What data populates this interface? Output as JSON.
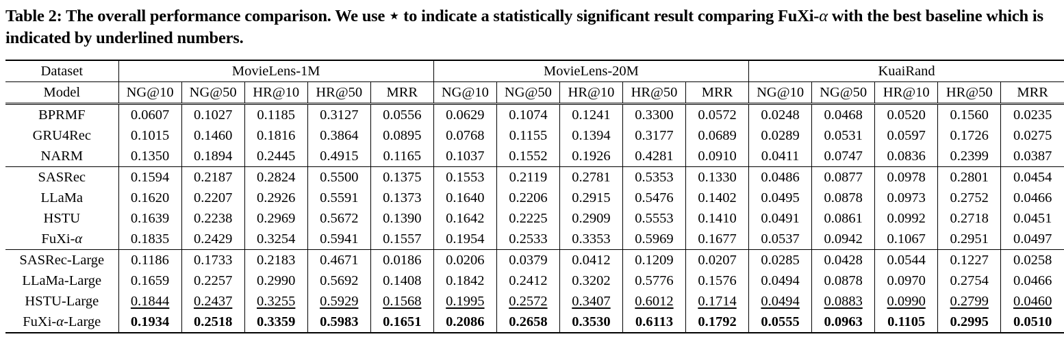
{
  "caption": {
    "part1": "Table 2: The overall performance comparison. We use ⋆ to indicate a statistically significant result comparing FuXi-",
    "alpha": "α",
    "part2": " with the best baseline which is indicated by underlined numbers."
  },
  "table": {
    "dataset_label": "Dataset",
    "model_label": "Model",
    "datasets": [
      "MovieLens-1M",
      "MovieLens-20M",
      "KuaiRand"
    ],
    "metrics": [
      "NG@10",
      "NG@50",
      "HR@10",
      "HR@50",
      "MRR",
      "NG@10",
      "NG@50",
      "HR@10",
      "HR@50",
      "MRR",
      "NG@10",
      "NG@50",
      "HR@10",
      "HR@50",
      "MRR"
    ],
    "rows": [
      {
        "model": "BPRMF",
        "values": [
          "0.0607",
          "0.1027",
          "0.1185",
          "0.3127",
          "0.0556",
          "0.0629",
          "0.1074",
          "0.1241",
          "0.3300",
          "0.0572",
          "0.0248",
          "0.0468",
          "0.0520",
          "0.1560",
          "0.0235"
        ]
      },
      {
        "model": "GRU4Rec",
        "values": [
          "0.1015",
          "0.1460",
          "0.1816",
          "0.3864",
          "0.0895",
          "0.0768",
          "0.1155",
          "0.1394",
          "0.3177",
          "0.0689",
          "0.0289",
          "0.0531",
          "0.0597",
          "0.1726",
          "0.0275"
        ]
      },
      {
        "model": "NARM",
        "values": [
          "0.1350",
          "0.1894",
          "0.2445",
          "0.4915",
          "0.1165",
          "0.1037",
          "0.1552",
          "0.1926",
          "0.4281",
          "0.0910",
          "0.0411",
          "0.0747",
          "0.0836",
          "0.2399",
          "0.0387"
        ]
      },
      {
        "model": "SASRec",
        "values": [
          "0.1594",
          "0.2187",
          "0.2824",
          "0.5500",
          "0.1375",
          "0.1553",
          "0.2119",
          "0.2781",
          "0.5353",
          "0.1330",
          "0.0486",
          "0.0877",
          "0.0978",
          "0.2801",
          "0.0454"
        ]
      },
      {
        "model": "LLaMa",
        "values": [
          "0.1620",
          "0.2207",
          "0.2926",
          "0.5591",
          "0.1373",
          "0.1640",
          "0.2206",
          "0.2915",
          "0.5476",
          "0.1402",
          "0.0495",
          "0.0878",
          "0.0973",
          "0.2752",
          "0.0466"
        ]
      },
      {
        "model": "HSTU",
        "values": [
          "0.1639",
          "0.2238",
          "0.2969",
          "0.5672",
          "0.1390",
          "0.1642",
          "0.2225",
          "0.2909",
          "0.5553",
          "0.1410",
          "0.0491",
          "0.0861",
          "0.0992",
          "0.2718",
          "0.0451"
        ]
      },
      {
        "model": "FuXi-α",
        "values": [
          "0.1835",
          "0.2429",
          "0.3254",
          "0.5941",
          "0.1557",
          "0.1954",
          "0.2533",
          "0.3353",
          "0.5969",
          "0.1677",
          "0.0537",
          "0.0942",
          "0.1067",
          "0.2951",
          "0.0497"
        ]
      },
      {
        "model": "SASRec-Large",
        "values": [
          "0.1186",
          "0.1733",
          "0.2183",
          "0.4671",
          "0.0186",
          "0.0206",
          "0.0379",
          "0.0412",
          "0.1209",
          "0.0207",
          "0.0285",
          "0.0428",
          "0.0544",
          "0.1227",
          "0.0258"
        ]
      },
      {
        "model": "LLaMa-Large",
        "values": [
          "0.1659",
          "0.2257",
          "0.2990",
          "0.5692",
          "0.1408",
          "0.1842",
          "0.2412",
          "0.3202",
          "0.5776",
          "0.1576",
          "0.0494",
          "0.0878",
          "0.0970",
          "0.2754",
          "0.0466"
        ]
      },
      {
        "model": "HSTU-Large",
        "values": [
          "0.1844",
          "0.2437",
          "0.3255",
          "0.5929",
          "0.1568",
          "0.1995",
          "0.2572",
          "0.3407",
          "0.6012",
          "0.1714",
          "0.0494",
          "0.0883",
          "0.0990",
          "0.2799",
          "0.0460"
        ]
      },
      {
        "model": "FuXi-α-Large",
        "values": [
          "0.1934",
          "0.2518",
          "0.3359",
          "0.5983",
          "0.1651",
          "0.2086",
          "0.2658",
          "0.3530",
          "0.6113",
          "0.1792",
          "0.0555",
          "0.0963",
          "0.1105",
          "0.2995",
          "0.0510"
        ]
      }
    ]
  }
}
